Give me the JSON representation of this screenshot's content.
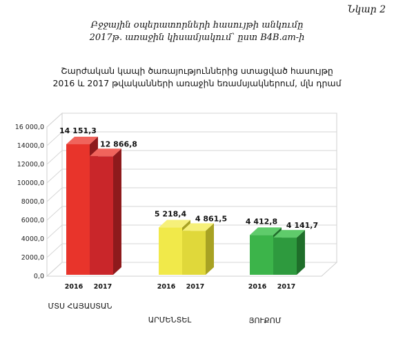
{
  "figure_label": "Նկար 2",
  "caption": {
    "line1": "Բջջային օպերատորների հասույթի անկումը",
    "line2": "2017թ. առաջին կիսամյակում՝ ըստ B4B.am-ի"
  },
  "chart_data": {
    "type": "bar",
    "title_line1": "Շարժական կապի ծառայություններից ստացված հասույթը",
    "title_line2": "2016 և 2017 թվականների առաջին եռամսյակներում, մլն դրամ",
    "ylim": [
      0,
      16000
    ],
    "yticks": [
      "0,0",
      "2000,0",
      "4000,0",
      "6000,0",
      "8000,0",
      "10000,0",
      "12000,0",
      "14000,0",
      "16 000,0"
    ],
    "grid": true,
    "categories": [
      {
        "name": "ՄՏՍ ՀԱՅԱՍՏԱՆ",
        "colors": {
          "front2016": "#e8342b",
          "front2017": "#c9262a",
          "top": "#f0645c",
          "side": "#8e1a1c"
        },
        "bars": [
          {
            "year": "2016",
            "value": 14151.3,
            "label": "14 151,3"
          },
          {
            "year": "2017",
            "value": 12866.8,
            "label": "12 866,8"
          }
        ]
      },
      {
        "name": "ԱՐՄԵՆՏԵԼ",
        "colors": {
          "front2016": "#f1e94a",
          "front2017": "#e0d83a",
          "top": "#f6f07a",
          "side": "#a8a223"
        },
        "bars": [
          {
            "year": "2016",
            "value": 5218.4,
            "label": "5 218,4"
          },
          {
            "year": "2017",
            "value": 4861.5,
            "label": "4 861,5"
          }
        ]
      },
      {
        "name": "ՅՈՒՔՈՄ",
        "colors": {
          "front2016": "#3cb44a",
          "front2017": "#2e9a3e",
          "top": "#5fcb6b",
          "side": "#1f6e2a"
        },
        "bars": [
          {
            "year": "2016",
            "value": 4412.8,
            "label": "4 412,8"
          },
          {
            "year": "2017",
            "value": 4141.7,
            "label": "4 141,7"
          }
        ]
      }
    ]
  }
}
